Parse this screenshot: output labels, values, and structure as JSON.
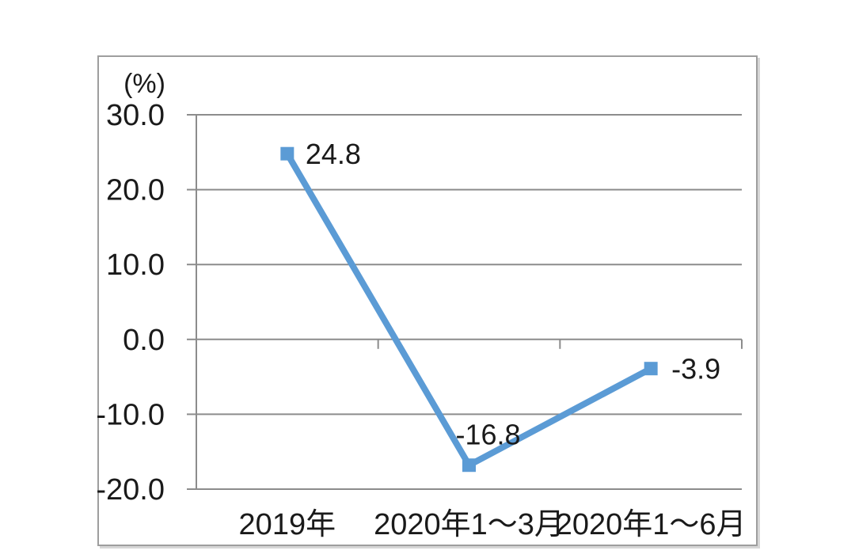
{
  "chart_data": {
    "type": "line",
    "title": "",
    "unit_label": "(%)",
    "categories": [
      "2019年",
      "2020年1～3月",
      "2020年1～6月"
    ],
    "series": [
      {
        "name": "growth-rate",
        "values": [
          24.8,
          -16.8,
          -3.9
        ]
      }
    ],
    "data_labels": [
      "24.8",
      "-16.8",
      "-3.9"
    ],
    "y_ticks": [
      30,
      20,
      10,
      0,
      -10,
      -20
    ],
    "y_tick_labels": [
      "30.0",
      "20.0",
      "10.0",
      "0.0",
      "-10.0",
      "-20.0"
    ],
    "ylim": [
      -20,
      30
    ],
    "zero_axis": 0,
    "grid": "horizontal",
    "legend": "none",
    "colors": {
      "line": "#5b9bd5",
      "marker": "#5b9bd5",
      "grid": "#8c8c8c",
      "axis": "#8c8c8c",
      "text": "#1a1a1a",
      "frame_border": "#9e9e9e",
      "background": "#ffffff"
    }
  }
}
